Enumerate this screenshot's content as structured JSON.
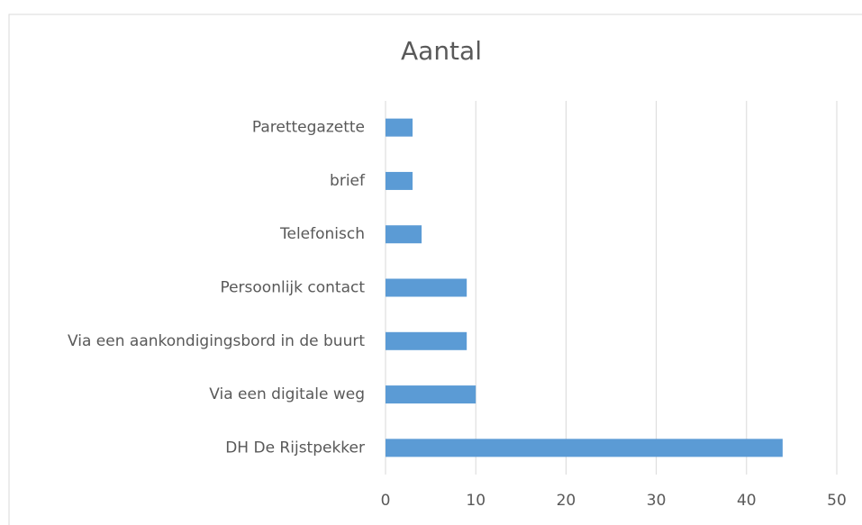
{
  "chart_data": {
    "type": "bar",
    "orientation": "horizontal",
    "title": "Aantal",
    "categories": [
      "Parettegazette",
      "brief",
      "Telefonisch",
      "Persoonlijk contact",
      "Via een aankondigingsbord in de buurt",
      "Via een digitale weg",
      "DH De Rijstpekker"
    ],
    "values": [
      3,
      3,
      4,
      9,
      9,
      10,
      44
    ],
    "color": "#5b9bd5",
    "xlim": [
      0,
      50
    ],
    "xticks": [
      0,
      10,
      20,
      30,
      40,
      50
    ],
    "grid": true
  }
}
